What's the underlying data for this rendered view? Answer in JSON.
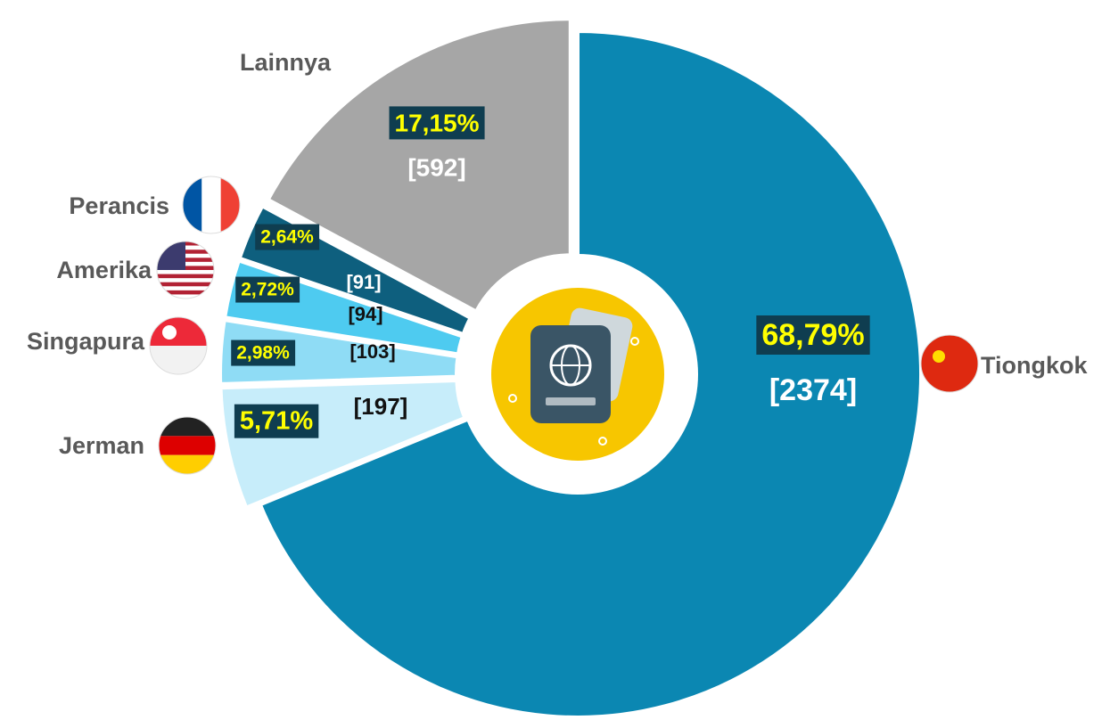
{
  "chart_data": {
    "type": "donut",
    "categories": [
      "Tiongkok",
      "Jerman",
      "Singapura",
      "Amerika",
      "Perancis",
      "Lainnya"
    ],
    "values": [
      68.79,
      5.71,
      2.98,
      2.72,
      2.64,
      17.15
    ],
    "value_labels": [
      "68,79%",
      "5,71%",
      "2,98%",
      "2,72%",
      "2,64%",
      "17,15%"
    ],
    "counts": [
      2374,
      197,
      103,
      94,
      91,
      592
    ],
    "count_labels": [
      "[2374]",
      "[197]",
      "[103]",
      "[94]",
      "[91]",
      "[592]"
    ],
    "colors": [
      "#0b87b2",
      "#c7edfa",
      "#8fdcf5",
      "#4ecbf0",
      "#0e5f7e",
      "#a6a6a6"
    ]
  }
}
